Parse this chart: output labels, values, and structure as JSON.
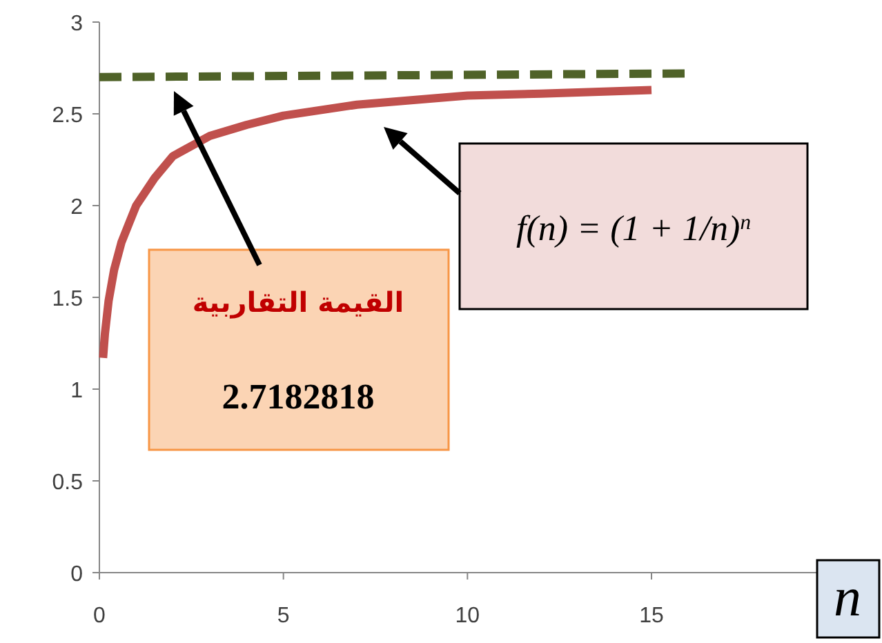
{
  "chart_data": {
    "type": "line",
    "xlim": [
      0,
      19.5
    ],
    "ylim": [
      0,
      3
    ],
    "xticks": [
      0,
      5,
      10,
      15
    ],
    "yticks": [
      0,
      0.5,
      1,
      1.5,
      2,
      2.5,
      3
    ],
    "xlabel": "n",
    "series": [
      {
        "color": "#c0504d",
        "x": [
          0.1,
          0.15,
          0.25,
          0.4,
          0.6,
          0.8,
          1,
          1.5,
          2,
          3,
          4,
          5,
          7,
          10,
          12,
          15
        ],
        "values": [
          1.17,
          1.3,
          1.48,
          1.65,
          1.8,
          1.9,
          2.0,
          2.15,
          2.27,
          2.38,
          2.44,
          2.49,
          2.55,
          2.6,
          2.61,
          2.63
        ]
      },
      {
        "color": "#4f6228",
        "line_style": "dashed",
        "x": [
          0,
          16
        ],
        "values": [
          2.7,
          2.72
        ]
      }
    ],
    "annotations": [
      "القيمة التقاربية",
      "2.7182818",
      "f(n) = (1 + 1/n)$^{n}$"
    ]
  }
}
